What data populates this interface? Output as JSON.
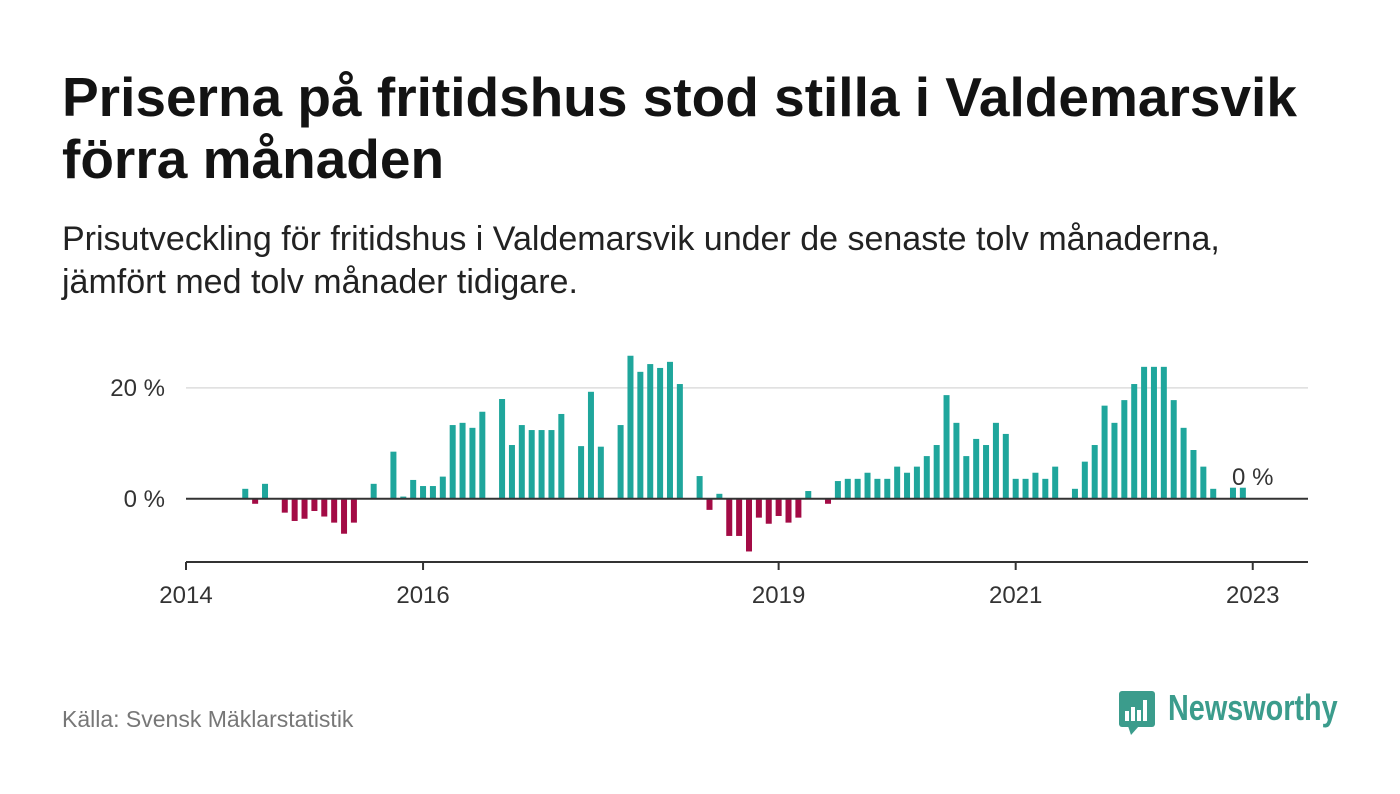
{
  "chart_data": {
    "type": "bar",
    "title": "Priserna på fritidshus stod stilla i Valdemarsvik förra månaden",
    "subtitle": "Prisutveckling för fritidshus i Valdemarsvik under de senaste tolv månaderna, jämfört med tolv månader tidigare.",
    "source": "Källa: Svensk Mäklarstatistik",
    "x": [
      "2014-07",
      "2014-08",
      "2014-09",
      "2014-10",
      "2014-11",
      "2014-12",
      "2015-01",
      "2015-02",
      "2015-03",
      "2015-04",
      "2015-05",
      "2015-06",
      "2015-07",
      "2015-08",
      "2015-09",
      "2015-10",
      "2015-11",
      "2015-12",
      "2016-01",
      "2016-02",
      "2016-03",
      "2016-04",
      "2016-05",
      "2016-06",
      "2016-07",
      "2016-08",
      "2016-09",
      "2016-10",
      "2016-11",
      "2016-12",
      "2017-01",
      "2017-02",
      "2017-03",
      "2017-04",
      "2017-05",
      "2017-06",
      "2017-07",
      "2017-08",
      "2017-09",
      "2017-10",
      "2017-11",
      "2017-12",
      "2018-01",
      "2018-02",
      "2018-03",
      "2018-04",
      "2018-05",
      "2018-06",
      "2018-07",
      "2018-08",
      "2018-09",
      "2018-10",
      "2018-11",
      "2018-12",
      "2019-01",
      "2019-02",
      "2019-03",
      "2019-04",
      "2019-05",
      "2019-06",
      "2019-07",
      "2019-08",
      "2019-09",
      "2019-10",
      "2019-11",
      "2019-12",
      "2020-01",
      "2020-02",
      "2020-03",
      "2020-04",
      "2020-05",
      "2020-06",
      "2020-07",
      "2020-08",
      "2020-09",
      "2020-10",
      "2020-11",
      "2020-12",
      "2021-01",
      "2021-02",
      "2021-03",
      "2021-04",
      "2021-05",
      "2021-06",
      "2021-07",
      "2021-08",
      "2021-09",
      "2021-10",
      "2021-11",
      "2021-12",
      "2022-01",
      "2022-02",
      "2022-03",
      "2022-04",
      "2022-05",
      "2022-06",
      "2022-07",
      "2022-08",
      "2022-09",
      "2022-10",
      "2022-11",
      "2022-12",
      "2023-01"
    ],
    "values": [
      1.8,
      -0.9,
      2.7,
      null,
      -2.5,
      -4.0,
      -3.6,
      -2.2,
      -3.2,
      -4.3,
      -6.3,
      -4.3,
      null,
      2.7,
      null,
      8.5,
      0.4,
      3.4,
      2.3,
      2.3,
      4.0,
      13.3,
      13.7,
      12.8,
      15.7,
      null,
      18.0,
      9.7,
      13.3,
      12.4,
      12.4,
      12.4,
      15.3,
      null,
      9.5,
      19.3,
      9.4,
      null,
      13.3,
      25.8,
      22.9,
      24.3,
      23.6,
      24.7,
      20.7,
      null,
      4.1,
      -2.0,
      0.9,
      -6.7,
      -6.7,
      -9.5,
      -3.4,
      -4.5,
      -3.1,
      -4.3,
      -3.4,
      1.4,
      null,
      -0.9,
      3.2,
      3.6,
      3.6,
      4.7,
      3.6,
      3.6,
      5.8,
      4.7,
      5.8,
      7.7,
      9.7,
      18.7,
      13.7,
      7.7,
      10.8,
      9.7,
      13.7,
      11.7,
      3.6,
      3.6,
      4.7,
      3.6,
      5.8,
      null,
      1.8,
      6.7,
      9.7,
      16.8,
      13.7,
      17.8,
      20.7,
      23.8,
      23.8,
      23.8,
      17.8,
      12.8,
      8.8,
      5.8,
      1.8,
      null,
      2.0,
      2.0,
      0
    ],
    "xlim": [
      "2014-01",
      "2023-07"
    ],
    "ylim": [
      -11.4,
      28.1
    ],
    "x_ticks": [
      {
        "x": "2014-01",
        "label": "2014"
      },
      {
        "x": "2016-01",
        "label": "2016"
      },
      {
        "x": "2019-01",
        "label": "2019"
      },
      {
        "x": "2021-01",
        "label": "2021"
      },
      {
        "x": "2023-01",
        "label": "2023"
      }
    ],
    "y_ticks": [
      {
        "value": 20,
        "label": "20 %"
      },
      {
        "value": 0,
        "label": "0 %"
      }
    ],
    "annotations": [
      {
        "x": "2023-01",
        "value": 0,
        "label": "0 %"
      }
    ],
    "grid": "horizontal",
    "legend": "none",
    "colors": {
      "positive": "#1fa69c",
      "negative": "#a30b45"
    }
  },
  "brand": {
    "name": "Newsworthy",
    "icon": "newsworthy-logo-icon",
    "color": "#3b9c8c"
  }
}
